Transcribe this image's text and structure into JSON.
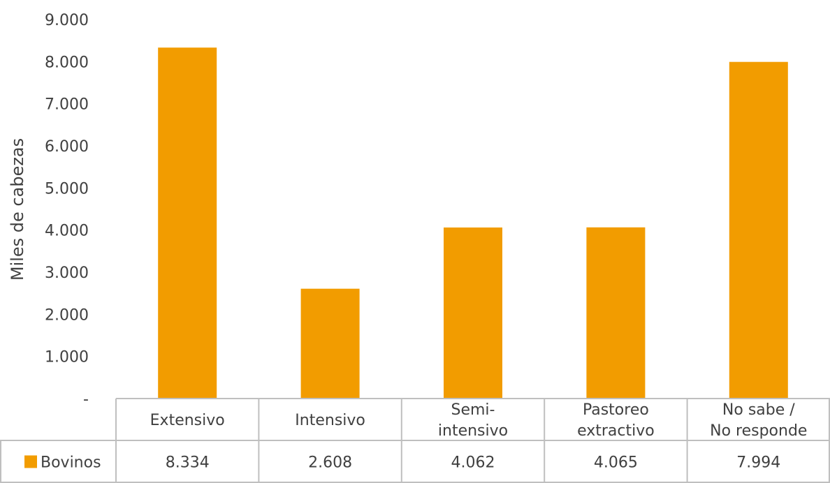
{
  "chart_data": {
    "type": "bar",
    "title": "",
    "xlabel": "",
    "ylabel": "Miles de cabezas",
    "ylim": [
      0,
      9000
    ],
    "yticks": [
      "-",
      "1.000",
      "2.000",
      "3.000",
      "4.000",
      "5.000",
      "6.000",
      "7.000",
      "8.000",
      "9.000"
    ],
    "grid": false,
    "legend": "data-table-left",
    "categories": [
      [
        "Extensivo"
      ],
      [
        "Intensivo"
      ],
      [
        "Semi-",
        "intensivo"
      ],
      [
        "Pastoreo",
        "extractivo"
      ],
      [
        "No sabe /",
        "No responde"
      ]
    ],
    "series": [
      {
        "name": "Bovinos",
        "color": "#F29C00",
        "values": [
          8334,
          2608,
          4062,
          4065,
          7994
        ],
        "value_labels": [
          "8.334",
          "2.608",
          "4.062",
          "4.065",
          "7.994"
        ]
      }
    ]
  }
}
